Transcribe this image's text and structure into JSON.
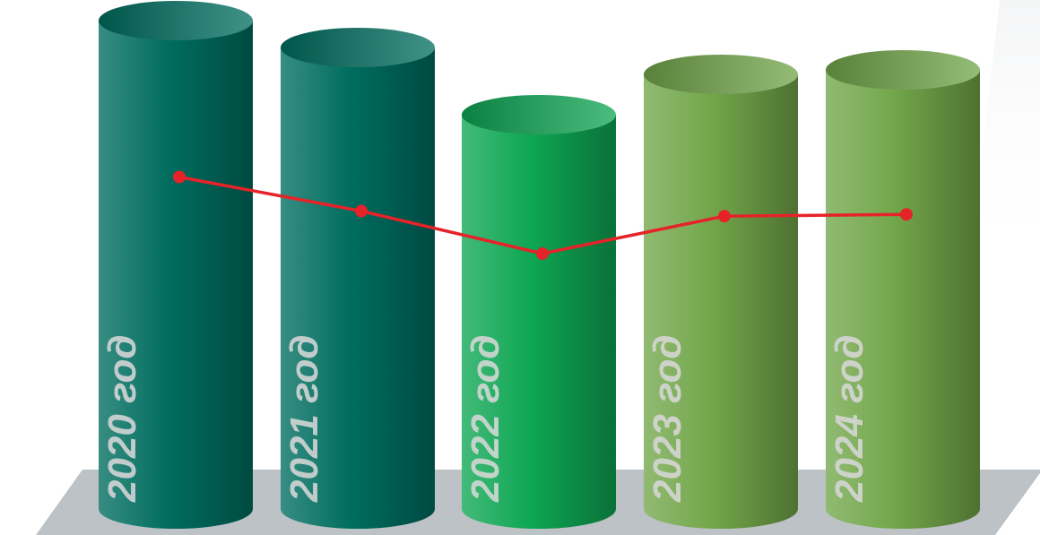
{
  "chart_data": {
    "type": "bar",
    "style": "3d-cylinder",
    "categories": [
      "2020 год",
      "2021 год",
      "2022 год",
      "2023 год",
      "2024 год"
    ],
    "series": [
      {
        "values": [
          545,
          515,
          440,
          485,
          490
        ]
      },
      {
        "values": [
          195,
          175,
          150,
          172,
          173
        ]
      }
    ],
    "bar_colors": [
      "#006d5f",
      "#006d5f",
      "#0ea653",
      "#72a64a",
      "#72a64a"
    ],
    "line_color": "#e52329",
    "platform_color": "#bcc2c6",
    "legend": "none",
    "grid": false
  }
}
